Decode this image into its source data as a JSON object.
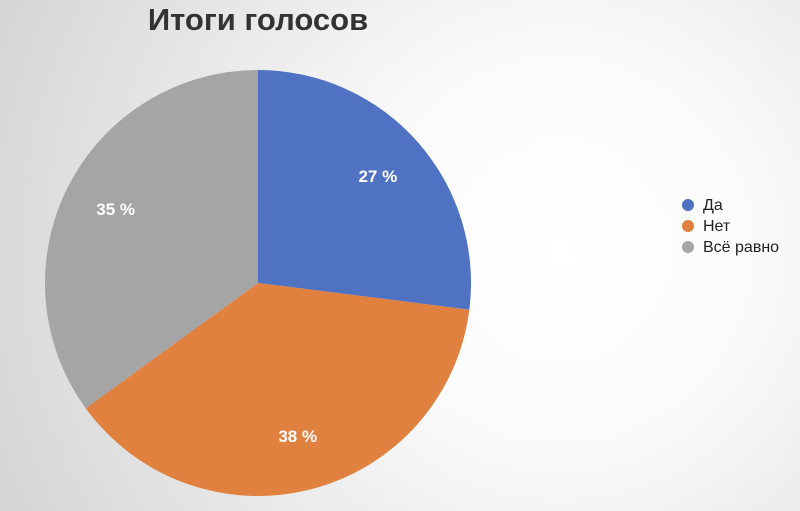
{
  "chart_data": {
    "type": "pie",
    "title": "Итоги голосов",
    "categories": [
      "Да",
      "Нет",
      "Всё равно"
    ],
    "values": [
      27,
      38,
      35
    ],
    "value_labels": [
      "27 %",
      "38 %",
      "35 %"
    ],
    "colors": [
      "#4f72c3",
      "#e0813f",
      "#a5a5a5"
    ],
    "legend": "right"
  }
}
